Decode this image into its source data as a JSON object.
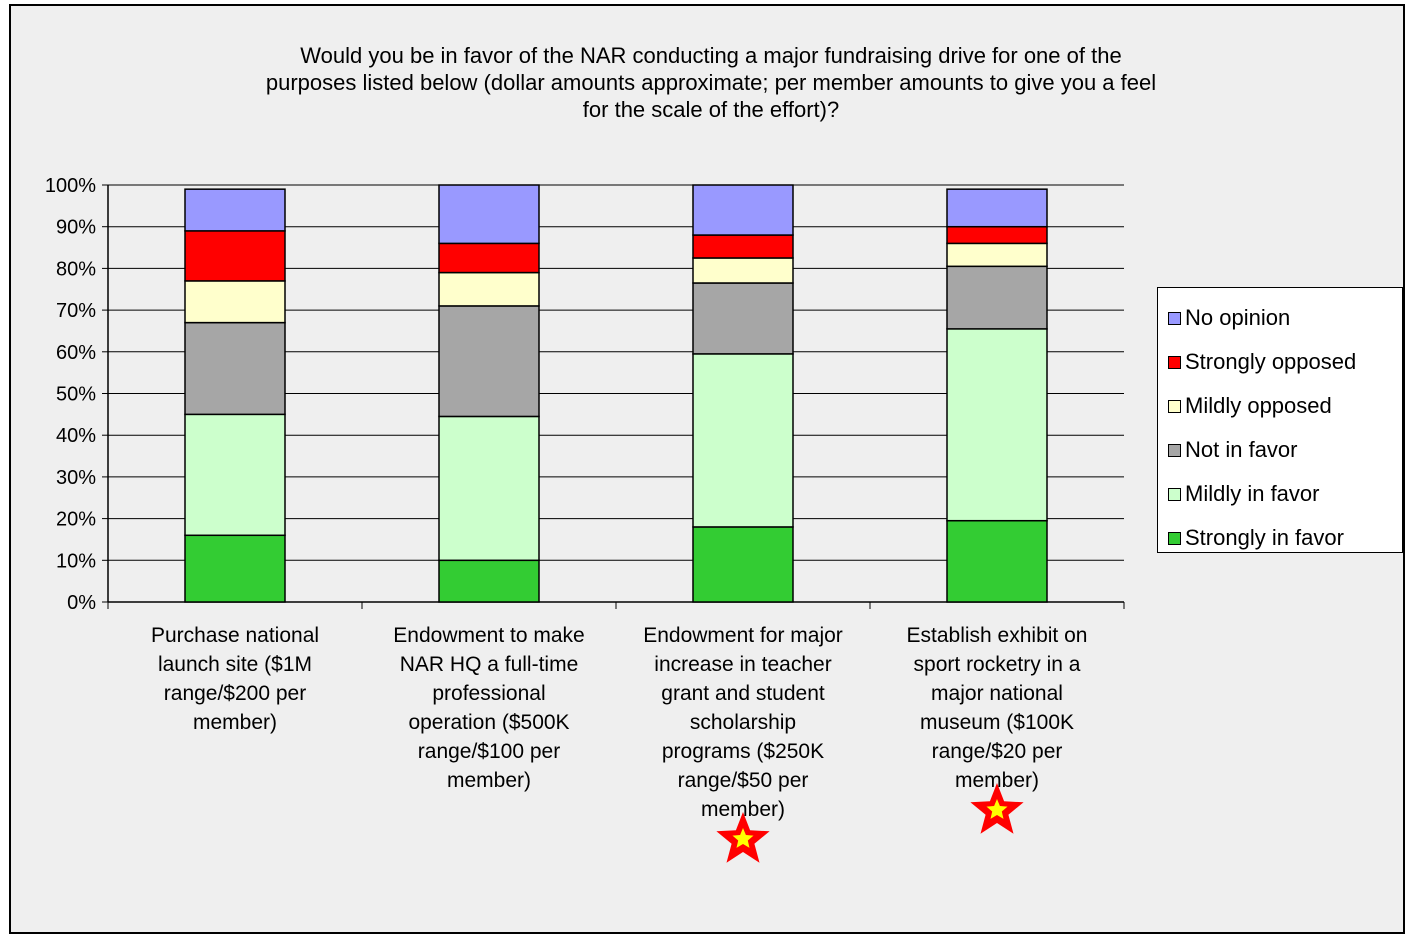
{
  "chart_data": {
    "type": "bar",
    "stacked": true,
    "title": "Would you be in favor of the NAR conducting a major fundraising drive for one of the purposes listed below (dollar amounts approximate; per member amounts to give you a feel for the scale of the effort)?",
    "title_lines": [
      "Would you be in favor of the NAR conducting a major fundraising drive for one of the",
      "purposes listed below (dollar amounts approximate; per member amounts to give you a feel",
      "for the scale of the effort)?"
    ],
    "categories": [
      "Purchase national launch site ($1M range/$200 per member)",
      "Endowment to make NAR HQ a full-time professional operation ($500K range/$100 per member)",
      "Endowment for major increase in teacher grant and student scholarship programs ($250K range/$50 per member)",
      "Establish exhibit on sport rocketry in a major national museum ($100K range/$20 per member)"
    ],
    "category_lines": [
      [
        "Purchase national",
        "launch site ($1M",
        "range/$200 per",
        "member)"
      ],
      [
        "Endowment to make",
        "NAR HQ a full-time",
        "professional",
        "operation ($500K",
        "range/$100 per",
        "member)"
      ],
      [
        "Endowment for major",
        "increase in teacher",
        "grant and student",
        "scholarship",
        "programs ($250K",
        "range/$50 per",
        "member)"
      ],
      [
        "Establish exhibit on",
        "sport rocketry in a",
        "major national",
        "museum ($100K",
        "range/$20 per",
        "member)"
      ]
    ],
    "series": [
      {
        "name": "Strongly in favor",
        "color": "#33cc33",
        "values": [
          16,
          10,
          18,
          19.5
        ]
      },
      {
        "name": "Mildly in favor",
        "color": "#ccffcc",
        "values": [
          29,
          34.5,
          41.5,
          46
        ]
      },
      {
        "name": "Not in favor",
        "color": "#a6a6a6",
        "values": [
          22,
          26.5,
          17,
          15
        ]
      },
      {
        "name": "Mildly opposed",
        "color": "#ffffcc",
        "values": [
          10,
          8,
          6,
          5.5
        ]
      },
      {
        "name": "Strongly opposed",
        "color": "#ff0000",
        "values": [
          12,
          7,
          5.5,
          4
        ]
      },
      {
        "name": "No opinion",
        "color": "#9999ff",
        "values": [
          10,
          14,
          12,
          9
        ]
      }
    ],
    "legend_order": [
      "No opinion",
      "Strongly opposed",
      "Mildly opposed",
      "Not in favor",
      "Mildly in favor",
      "Strongly in favor"
    ],
    "legend_position": "right",
    "ylim": [
      0,
      100
    ],
    "yticks": [
      "0%",
      "10%",
      "20%",
      "30%",
      "40%",
      "50%",
      "60%",
      "70%",
      "80%",
      "90%",
      "100%"
    ],
    "grid": true,
    "star_markers": [
      2,
      3
    ],
    "star_color": "#ff0000",
    "star_inner_color": "#ffff00"
  }
}
